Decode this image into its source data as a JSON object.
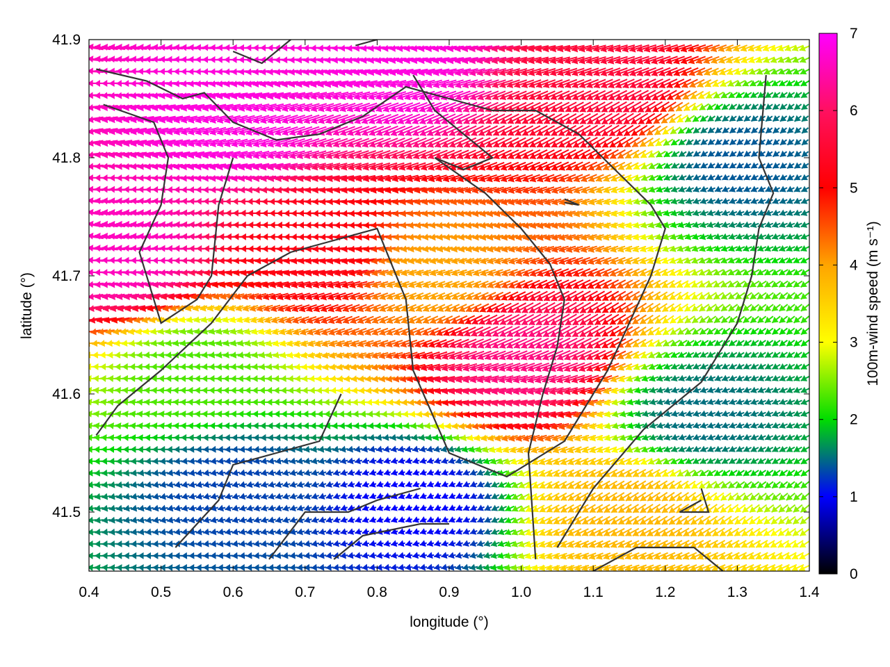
{
  "chart_data": {
    "type": "quiver",
    "xlabel": "longitude (°)",
    "ylabel": "latitude (°)",
    "xlim": [
      0.4,
      1.4
    ],
    "ylim": [
      41.45,
      41.9
    ],
    "xticks": [
      "0.4",
      "0.5",
      "0.6",
      "0.7",
      "0.8",
      "0.9",
      "1.0",
      "1.1",
      "1.2",
      "1.3",
      "1.4"
    ],
    "yticks": [
      "41.5",
      "41.6",
      "41.7",
      "41.8",
      "41.9"
    ],
    "colorbar": {
      "label": "100m-wind speed (m s⁻¹)",
      "range": [
        0,
        7
      ],
      "ticks": [
        "0",
        "1",
        "2",
        "3",
        "4",
        "5",
        "6",
        "7"
      ],
      "colormap": [
        "#000000",
        "#0000ff",
        "#00dd00",
        "#ffff00",
        "#ffa500",
        "#ff0000",
        "#ff00ff"
      ]
    },
    "grid": false,
    "legend": "none",
    "wind_regions": [
      {
        "lon": 0.45,
        "lat": 41.72,
        "speed": 6.6
      },
      {
        "lon": 0.6,
        "lat": 41.83,
        "speed": 6.8
      },
      {
        "lon": 0.82,
        "lat": 41.88,
        "speed": 6.8
      },
      {
        "lon": 0.88,
        "lat": 41.7,
        "speed": 4.0
      },
      {
        "lon": 0.72,
        "lat": 41.72,
        "speed": 5.2
      },
      {
        "lon": 1.0,
        "lat": 41.63,
        "speed": 6.2
      },
      {
        "lon": 1.12,
        "lat": 41.86,
        "speed": 5.6
      },
      {
        "lon": 0.55,
        "lat": 41.62,
        "speed": 2.3
      },
      {
        "lon": 0.6,
        "lat": 41.52,
        "speed": 1.3
      },
      {
        "lon": 0.85,
        "lat": 41.51,
        "speed": 1.0
      },
      {
        "lon": 1.25,
        "lat": 41.58,
        "speed": 1.5
      },
      {
        "lon": 1.3,
        "lat": 41.8,
        "speed": 1.4
      },
      {
        "lon": 1.15,
        "lat": 41.5,
        "speed": 3.8
      }
    ],
    "contours": [
      [
        [
          0.41,
          41.875
        ],
        [
          0.48,
          41.865
        ],
        [
          0.53,
          41.85
        ],
        [
          0.56,
          41.855
        ],
        [
          0.6,
          41.83
        ],
        [
          0.66,
          41.815
        ],
        [
          0.72,
          41.82
        ],
        [
          0.78,
          41.835
        ],
        [
          0.84,
          41.86
        ],
        [
          0.9,
          41.85
        ],
        [
          0.96,
          41.84
        ],
        [
          1.02,
          41.84
        ],
        [
          1.08,
          41.82
        ],
        [
          1.13,
          41.79
        ],
        [
          1.18,
          41.76
        ],
        [
          1.2,
          41.74
        ],
        [
          1.18,
          41.7
        ],
        [
          1.12,
          41.62
        ],
        [
          1.06,
          41.56
        ],
        [
          0.98,
          41.53
        ],
        [
          0.9,
          41.55
        ],
        [
          0.85,
          41.62
        ],
        [
          0.84,
          41.68
        ],
        [
          0.8,
          41.74
        ],
        [
          0.74,
          41.73
        ],
        [
          0.68,
          41.72
        ],
        [
          0.62,
          41.7
        ],
        [
          0.57,
          41.66
        ],
        [
          0.5,
          41.62
        ],
        [
          0.44,
          41.59
        ],
        [
          0.41,
          41.565
        ]
      ],
      [
        [
          0.42,
          41.845
        ],
        [
          0.49,
          41.83
        ],
        [
          0.51,
          41.8
        ],
        [
          0.5,
          41.76
        ],
        [
          0.47,
          41.72
        ],
        [
          0.5,
          41.66
        ],
        [
          0.55,
          41.68
        ],
        [
          0.57,
          41.7
        ],
        [
          0.58,
          41.76
        ],
        [
          0.6,
          41.8
        ]
      ],
      [
        [
          0.6,
          41.89
        ],
        [
          0.64,
          41.88
        ],
        [
          0.68,
          41.9
        ]
      ],
      [
        [
          0.77,
          41.895
        ],
        [
          0.8,
          41.9
        ]
      ],
      [
        [
          0.85,
          41.87
        ],
        [
          0.88,
          41.84
        ],
        [
          0.92,
          41.82
        ],
        [
          0.96,
          41.8
        ],
        [
          0.92,
          41.79
        ],
        [
          0.88,
          41.8
        ]
      ],
      [
        [
          0.88,
          41.8
        ],
        [
          0.95,
          41.77
        ],
        [
          1.0,
          41.74
        ],
        [
          1.04,
          41.71
        ],
        [
          1.06,
          41.68
        ],
        [
          1.05,
          41.64
        ],
        [
          1.03,
          41.6
        ],
        [
          1.01,
          41.55
        ],
        [
          1.02,
          41.46
        ]
      ],
      [
        [
          1.06,
          41.765
        ],
        [
          1.08,
          41.76
        ],
        [
          1.06,
          41.762
        ]
      ],
      [
        [
          1.25,
          41.52
        ],
        [
          1.26,
          41.5
        ],
        [
          1.22,
          41.5
        ],
        [
          1.25,
          41.51
        ]
      ],
      [
        [
          0.52,
          41.47
        ],
        [
          0.58,
          41.51
        ],
        [
          0.6,
          41.54
        ],
        [
          0.66,
          41.55
        ],
        [
          0.72,
          41.56
        ],
        [
          0.75,
          41.6
        ]
      ],
      [
        [
          0.65,
          41.46
        ],
        [
          0.7,
          41.5
        ],
        [
          0.76,
          41.5
        ],
        [
          0.8,
          41.51
        ],
        [
          0.86,
          41.52
        ]
      ],
      [
        [
          0.74,
          41.46
        ],
        [
          0.78,
          41.48
        ],
        [
          0.86,
          41.49
        ],
        [
          0.9,
          41.49
        ]
      ],
      [
        [
          1.1,
          41.45
        ],
        [
          1.16,
          41.47
        ],
        [
          1.24,
          41.47
        ],
        [
          1.28,
          41.45
        ]
      ],
      [
        [
          1.34,
          41.87
        ],
        [
          1.33,
          41.8
        ],
        [
          1.35,
          41.77
        ],
        [
          1.33,
          41.74
        ],
        [
          1.32,
          41.7
        ],
        [
          1.3,
          41.66
        ],
        [
          1.25,
          41.61
        ],
        [
          1.17,
          41.57
        ],
        [
          1.1,
          41.52
        ],
        [
          1.05,
          41.47
        ]
      ]
    ]
  }
}
